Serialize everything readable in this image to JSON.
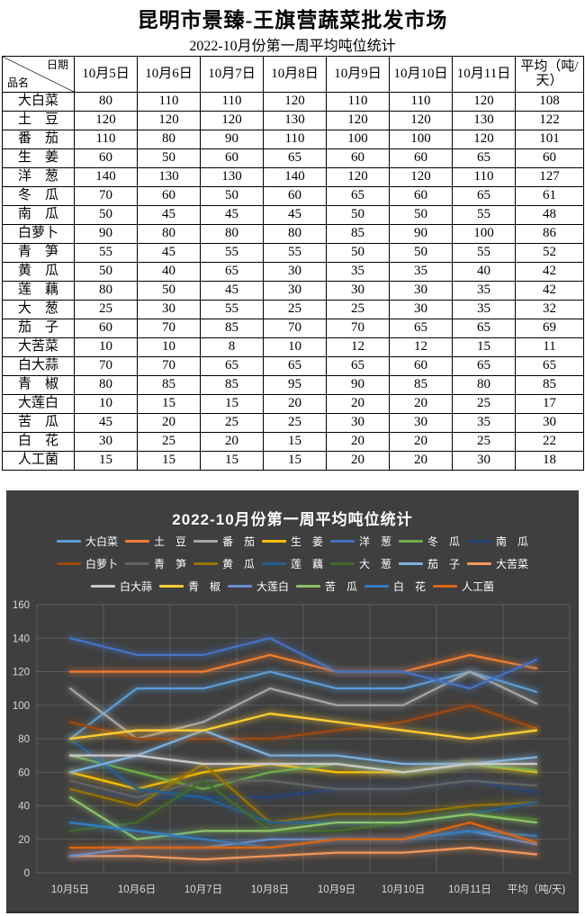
{
  "page": {
    "title": "昆明市景臻-王旗营蔬菜批发市场",
    "subtitle": "2022-10月份第一周平均吨位统计"
  },
  "table": {
    "corner_date": "日期",
    "corner_product": "品名",
    "columns": [
      "10月5日",
      "10月6日",
      "10月7日",
      "10月8日",
      "10月9日",
      "10月10日",
      "10月11日",
      "平均（吨/天）"
    ],
    "rows": [
      {
        "name": "大白菜",
        "values": [
          80,
          110,
          110,
          120,
          110,
          110,
          120,
          108
        ]
      },
      {
        "name": "土　豆",
        "values": [
          120,
          120,
          120,
          130,
          120,
          120,
          130,
          122
        ]
      },
      {
        "name": "番　茄",
        "values": [
          110,
          80,
          90,
          110,
          100,
          100,
          120,
          101
        ]
      },
      {
        "name": "生　姜",
        "values": [
          60,
          50,
          60,
          65,
          60,
          60,
          65,
          60
        ]
      },
      {
        "name": "洋　葱",
        "values": [
          140,
          130,
          130,
          140,
          120,
          120,
          110,
          127
        ]
      },
      {
        "name": "冬　瓜",
        "values": [
          70,
          60,
          50,
          60,
          65,
          60,
          65,
          61
        ]
      },
      {
        "name": "南　瓜",
        "values": [
          50,
          45,
          45,
          45,
          50,
          50,
          55,
          48
        ]
      },
      {
        "name": "白萝卜",
        "values": [
          90,
          80,
          80,
          80,
          85,
          90,
          100,
          86
        ]
      },
      {
        "name": "青　笋",
        "values": [
          55,
          45,
          55,
          55,
          50,
          50,
          55,
          52
        ]
      },
      {
        "name": "黄　瓜",
        "values": [
          50,
          40,
          65,
          30,
          35,
          35,
          40,
          42
        ]
      },
      {
        "name": "莲　藕",
        "values": [
          80,
          50,
          45,
          30,
          30,
          30,
          35,
          42
        ]
      },
      {
        "name": "大　葱",
        "values": [
          25,
          30,
          55,
          25,
          25,
          30,
          35,
          32
        ]
      },
      {
        "name": "茄　子",
        "values": [
          60,
          70,
          85,
          70,
          70,
          65,
          65,
          69
        ]
      },
      {
        "name": "大苦菜",
        "values": [
          10,
          10,
          8,
          10,
          12,
          12,
          15,
          11
        ]
      },
      {
        "name": "白大蒜",
        "values": [
          70,
          70,
          65,
          65,
          65,
          60,
          65,
          65
        ]
      },
      {
        "name": "青　椒",
        "values": [
          80,
          85,
          85,
          95,
          90,
          85,
          80,
          85
        ]
      },
      {
        "name": "大莲白",
        "values": [
          10,
          15,
          15,
          20,
          20,
          20,
          25,
          17
        ]
      },
      {
        "name": "苦　瓜",
        "values": [
          45,
          20,
          25,
          25,
          30,
          30,
          35,
          30
        ]
      },
      {
        "name": "白　花",
        "values": [
          30,
          25,
          20,
          15,
          20,
          20,
          25,
          22
        ]
      },
      {
        "name": "人工菌",
        "values": [
          15,
          15,
          15,
          15,
          20,
          20,
          30,
          18
        ]
      }
    ]
  },
  "chart_data": {
    "type": "line",
    "title": "2022-10月份第一周平均吨位统计",
    "categories": [
      "10月5日",
      "10月6日",
      "10月7日",
      "10月8日",
      "10月9日",
      "10月10日",
      "10月11日",
      "平均（吨/天)"
    ],
    "xlabel": "",
    "ylabel": "",
    "ylim": [
      0,
      160
    ],
    "ytick_step": 20,
    "grid": true,
    "legend_position": "top",
    "legend_rows": [
      7,
      7,
      6
    ],
    "background": "#3F3F3F",
    "grid_color": "#5C5C5C",
    "axis_text_color": "#D9D9D9",
    "text_color": "#FFFFFF",
    "line_glow": true,
    "series": [
      {
        "name": "大白菜",
        "color": "#5B9BD5",
        "values": [
          80,
          110,
          110,
          120,
          110,
          110,
          120,
          108
        ]
      },
      {
        "name": "土　豆",
        "color": "#ED7D31",
        "values": [
          120,
          120,
          120,
          130,
          120,
          120,
          130,
          122
        ]
      },
      {
        "name": "番　茄",
        "color": "#A5A5A5",
        "values": [
          110,
          80,
          90,
          110,
          100,
          100,
          120,
          101
        ]
      },
      {
        "name": "生　姜",
        "color": "#FFC000",
        "values": [
          60,
          50,
          60,
          65,
          60,
          60,
          65,
          60
        ]
      },
      {
        "name": "洋　葱",
        "color": "#4472C4",
        "values": [
          140,
          130,
          130,
          140,
          120,
          120,
          110,
          127
        ]
      },
      {
        "name": "冬　瓜",
        "color": "#70AD47",
        "values": [
          70,
          60,
          50,
          60,
          65,
          60,
          65,
          61
        ]
      },
      {
        "name": "南　瓜",
        "color": "#264478",
        "values": [
          50,
          45,
          45,
          45,
          50,
          50,
          55,
          48
        ]
      },
      {
        "name": "白萝卜",
        "color": "#9E480E",
        "values": [
          90,
          80,
          80,
          80,
          85,
          90,
          100,
          86
        ]
      },
      {
        "name": "青　笋",
        "color": "#636363",
        "values": [
          55,
          45,
          55,
          55,
          50,
          50,
          55,
          52
        ]
      },
      {
        "name": "黄　瓜",
        "color": "#997300",
        "values": [
          50,
          40,
          65,
          30,
          35,
          35,
          40,
          42
        ]
      },
      {
        "name": "莲　藕",
        "color": "#255E91",
        "values": [
          80,
          50,
          45,
          30,
          30,
          30,
          35,
          42
        ]
      },
      {
        "name": "大　葱",
        "color": "#43682B",
        "values": [
          25,
          30,
          55,
          25,
          25,
          30,
          35,
          32
        ]
      },
      {
        "name": "茄　子",
        "color": "#7CAFDD",
        "values": [
          60,
          70,
          85,
          70,
          70,
          65,
          65,
          69
        ]
      },
      {
        "name": "大苦菜",
        "color": "#F1975A",
        "values": [
          10,
          10,
          8,
          10,
          12,
          12,
          15,
          11
        ]
      },
      {
        "name": "白大蒜",
        "color": "#C9C9C9",
        "values": [
          70,
          70,
          65,
          65,
          65,
          60,
          65,
          65
        ]
      },
      {
        "name": "青　椒",
        "color": "#FFCD33",
        "values": [
          80,
          85,
          85,
          95,
          90,
          85,
          80,
          85
        ]
      },
      {
        "name": "大莲白",
        "color": "#698ED0",
        "values": [
          10,
          15,
          15,
          20,
          20,
          20,
          25,
          17
        ]
      },
      {
        "name": "苦　瓜",
        "color": "#8CC168",
        "values": [
          45,
          20,
          25,
          25,
          30,
          30,
          35,
          30
        ]
      },
      {
        "name": "白　花",
        "color": "#327DC2",
        "values": [
          30,
          25,
          20,
          15,
          20,
          20,
          25,
          22
        ]
      },
      {
        "name": "人工菌",
        "color": "#D86613",
        "values": [
          15,
          15,
          15,
          15,
          20,
          20,
          30,
          18
        ]
      }
    ]
  }
}
